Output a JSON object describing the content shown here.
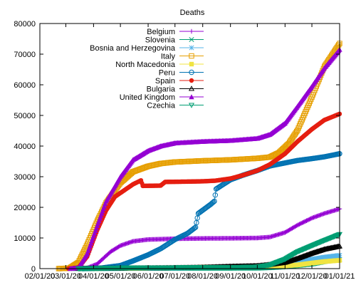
{
  "chart_data": {
    "type": "line",
    "title": "Deaths",
    "xlabel": "",
    "ylabel": "",
    "x_ticks": [
      "02/01/20",
      "03/01/20",
      "04/01/20",
      "05/01/20",
      "06/01/20",
      "07/01/20",
      "08/01/20",
      "09/01/20",
      "10/01/20",
      "11/01/20",
      "12/01/20",
      "01/01/21"
    ],
    "xlim": [
      "2020-02-01",
      "2021-01-01"
    ],
    "ylim": [
      0,
      80000
    ],
    "y_ticks": [
      0,
      10000,
      20000,
      30000,
      40000,
      50000,
      60000,
      70000,
      80000
    ],
    "grid": false,
    "legend_position": "top-left",
    "series": [
      {
        "name": "Belgium",
        "color": "#9400d3",
        "marker": "plus",
        "x": [
          "2020-03-10",
          "2020-03-25",
          "2020-04-05",
          "2020-04-20",
          "2020-05-01",
          "2020-05-15",
          "2020-06-01",
          "2020-07-01",
          "2020-08-01",
          "2020-09-01",
          "2020-10-01",
          "2020-10-15",
          "2020-11-01",
          "2020-11-15",
          "2020-12-01",
          "2020-12-15",
          "2021-01-01"
        ],
        "y": [
          0,
          200,
          1500,
          5500,
          7500,
          8900,
          9500,
          9750,
          9850,
          9900,
          10000,
          10300,
          11800,
          14200,
          16500,
          18000,
          19500
        ]
      },
      {
        "name": "Slovenia",
        "color": "#009e73",
        "marker": "x",
        "x": [
          "2020-03-10",
          "2020-04-01",
          "2020-05-01",
          "2020-07-01",
          "2020-09-01",
          "2020-10-01",
          "2020-10-15",
          "2020-11-01",
          "2020-11-15",
          "2020-12-01",
          "2020-12-15",
          "2021-01-01"
        ],
        "y": [
          0,
          20,
          90,
          110,
          140,
          160,
          300,
          600,
          1000,
          1500,
          2300,
          3000
        ]
      },
      {
        "name": "Bosnia and Herzegovina",
        "color": "#56b4e9",
        "marker": "star",
        "x": [
          "2020-03-20",
          "2020-05-01",
          "2020-07-01",
          "2020-08-01",
          "2020-09-01",
          "2020-10-01",
          "2020-10-15",
          "2020-11-01",
          "2020-11-15",
          "2020-12-01",
          "2020-12-15",
          "2021-01-01"
        ],
        "y": [
          0,
          50,
          200,
          400,
          600,
          800,
          1000,
          1500,
          2200,
          3000,
          3700,
          4300
        ]
      },
      {
        "name": "Italy",
        "color": "#e69f00",
        "marker": "square",
        "x": [
          "2020-02-22",
          "2020-03-05",
          "2020-03-15",
          "2020-03-25",
          "2020-04-05",
          "2020-04-15",
          "2020-05-01",
          "2020-05-15",
          "2020-06-01",
          "2020-06-15",
          "2020-07-01",
          "2020-08-01",
          "2020-09-01",
          "2020-10-01",
          "2020-10-15",
          "2020-10-25",
          "2020-11-05",
          "2020-11-15",
          "2020-12-01",
          "2020-12-15",
          "2021-01-01"
        ],
        "y": [
          0,
          150,
          2000,
          8000,
          15500,
          21500,
          28000,
          31600,
          33400,
          34300,
          34800,
          35200,
          35500,
          36000,
          36400,
          37800,
          40800,
          45200,
          56000,
          66000,
          73500
        ]
      },
      {
        "name": "North Macedonia",
        "color": "#f0e442",
        "marker": "square-filled",
        "x": [
          "2020-03-20",
          "2020-05-01",
          "2020-06-01",
          "2020-07-01",
          "2020-08-01",
          "2020-09-01",
          "2020-10-01",
          "2020-10-15",
          "2020-11-01",
          "2020-11-15",
          "2020-12-01",
          "2020-12-15",
          "2021-01-01"
        ],
        "y": [
          0,
          80,
          150,
          300,
          450,
          550,
          650,
          750,
          900,
          1200,
          1800,
          2300,
          2700
        ]
      },
      {
        "name": "Peru",
        "color": "#0072b2",
        "marker": "circle",
        "x": [
          "2020-03-20",
          "2020-04-10",
          "2020-05-01",
          "2020-05-15",
          "2020-06-01",
          "2020-06-15",
          "2020-07-01",
          "2020-07-15",
          "2020-07-24",
          "2020-07-27",
          "2020-08-10",
          "2020-08-14",
          "2020-08-16",
          "2020-09-01",
          "2020-09-15",
          "2020-10-01",
          "2020-10-15",
          "2020-11-01",
          "2020-11-15",
          "2020-12-01",
          "2020-12-15",
          "2021-01-01"
        ],
        "y": [
          0,
          200,
          1000,
          2500,
          4500,
          6500,
          9500,
          11500,
          13500,
          18000,
          21000,
          22000,
          26000,
          29000,
          30500,
          32000,
          33500,
          34500,
          35300,
          35900,
          36500,
          37500
        ]
      },
      {
        "name": "Spain",
        "color": "#e51e10",
        "marker": "circle-filled",
        "x": [
          "2020-03-04",
          "2020-03-15",
          "2020-03-25",
          "2020-04-05",
          "2020-04-15",
          "2020-04-25",
          "2020-05-15",
          "2020-05-24",
          "2020-05-26",
          "2020-06-15",
          "2020-06-20",
          "2020-07-15",
          "2020-08-01",
          "2020-08-15",
          "2020-09-01",
          "2020-09-15",
          "2020-10-01",
          "2020-10-15",
          "2020-11-01",
          "2020-11-15",
          "2020-12-01",
          "2020-12-15",
          "2021-01-01"
        ],
        "y": [
          0,
          300,
          4000,
          12500,
          19000,
          23500,
          27500,
          28800,
          27000,
          27100,
          28300,
          28400,
          28500,
          28700,
          29400,
          30500,
          32000,
          34000,
          37500,
          41500,
          45500,
          48500,
          50500
        ]
      },
      {
        "name": "Bulgaria",
        "color": "#000000",
        "marker": "triangle",
        "x": [
          "2020-03-10",
          "2020-05-01",
          "2020-07-01",
          "2020-08-01",
          "2020-09-01",
          "2020-10-01",
          "2020-10-15",
          "2020-11-01",
          "2020-11-15",
          "2020-12-01",
          "2020-12-15",
          "2021-01-01"
        ],
        "y": [
          0,
          100,
          250,
          400,
          700,
          900,
          1300,
          2000,
          3300,
          5000,
          6300,
          7300
        ]
      },
      {
        "name": "United Kingdom",
        "color": "#9400d3",
        "marker": "triangle-filled",
        "x": [
          "2020-03-06",
          "2020-03-15",
          "2020-03-25",
          "2020-04-05",
          "2020-04-15",
          "2020-05-01",
          "2020-05-15",
          "2020-06-01",
          "2020-06-15",
          "2020-07-01",
          "2020-08-01",
          "2020-09-01",
          "2020-10-01",
          "2020-10-15",
          "2020-11-01",
          "2020-11-15",
          "2020-12-01",
          "2020-12-15",
          "2021-01-01"
        ],
        "y": [
          0,
          300,
          5000,
          14000,
          22000,
          30000,
          35500,
          38500,
          40000,
          41000,
          41500,
          41800,
          42500,
          43800,
          47500,
          53000,
          59500,
          65500,
          71500
        ]
      },
      {
        "name": "Czechia",
        "color": "#009e73",
        "marker": "triangle-down",
        "x": [
          "2020-03-15",
          "2020-05-01",
          "2020-07-01",
          "2020-09-01",
          "2020-09-15",
          "2020-10-01",
          "2020-10-15",
          "2020-11-01",
          "2020-11-15",
          "2020-12-01",
          "2020-12-15",
          "2021-01-01"
        ],
        "y": [
          0,
          250,
          350,
          430,
          470,
          600,
          1200,
          3100,
          5500,
          7500,
          9200,
          11200
        ]
      }
    ]
  }
}
